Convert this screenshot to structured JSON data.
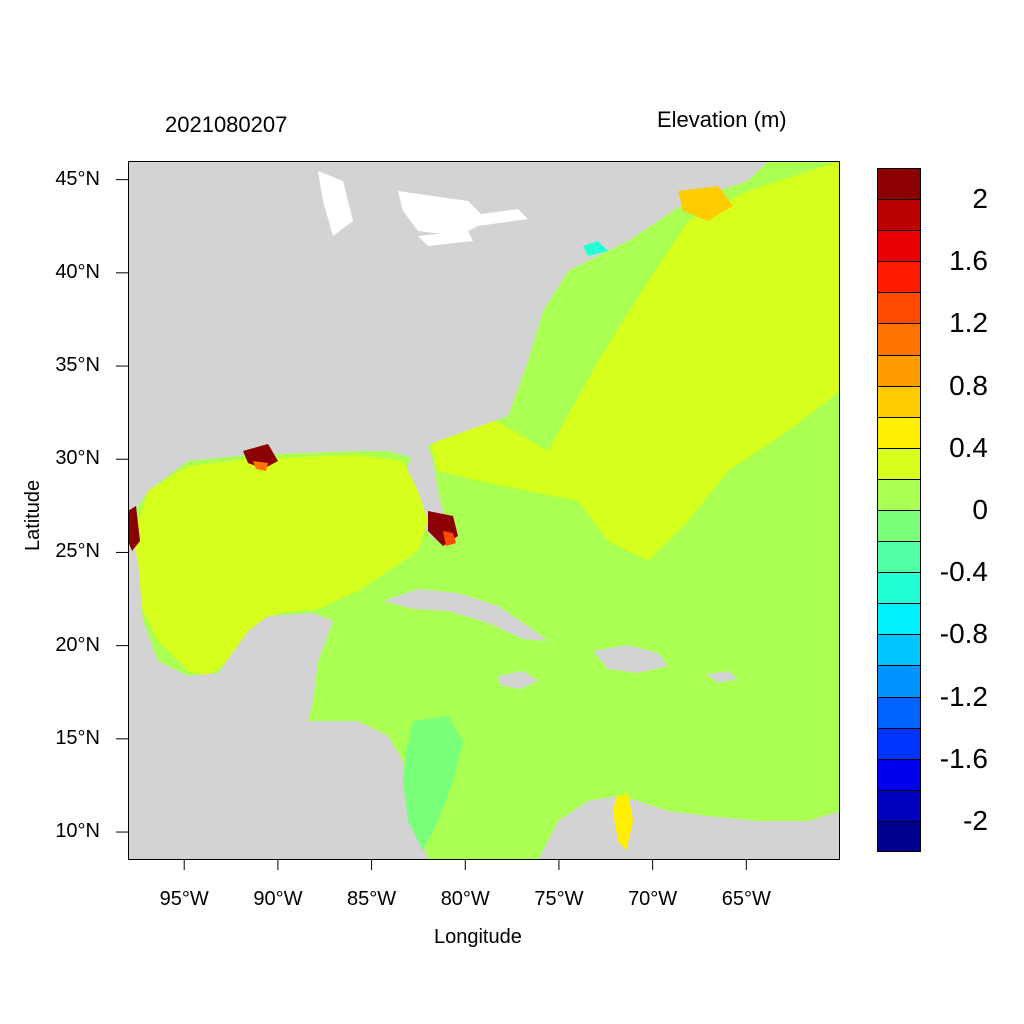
{
  "header": {
    "timestamp": "2021080207",
    "variable": "Elevation (m)"
  },
  "axes": {
    "xlabel": "Longitude",
    "ylabel": "Latitude",
    "lon_range": [
      -98,
      -60
    ],
    "lat_range": [
      8.5,
      46
    ],
    "x_ticks": [
      {
        "value": -95,
        "label": "95°W"
      },
      {
        "value": -90,
        "label": "90°W"
      },
      {
        "value": -85,
        "label": "85°W"
      },
      {
        "value": -80,
        "label": "80°W"
      },
      {
        "value": -75,
        "label": "75°W"
      },
      {
        "value": -70,
        "label": "70°W"
      },
      {
        "value": -65,
        "label": "65°W"
      }
    ],
    "y_ticks": [
      {
        "value": 45,
        "label": "45°N"
      },
      {
        "value": 40,
        "label": "40°N"
      },
      {
        "value": 35,
        "label": "35°N"
      },
      {
        "value": 30,
        "label": "30°N"
      },
      {
        "value": 25,
        "label": "25°N"
      },
      {
        "value": 20,
        "label": "20°N"
      },
      {
        "value": 15,
        "label": "15°N"
      },
      {
        "value": 10,
        "label": "10°N"
      }
    ]
  },
  "colorbar": {
    "colors_top_to_bottom": [
      "#8b0000",
      "#bb0000",
      "#e80000",
      "#ff1a00",
      "#ff4a00",
      "#ff7400",
      "#ff9c00",
      "#ffcc00",
      "#ffef00",
      "#d6ff1e",
      "#a9ff52",
      "#7aff7a",
      "#52ffa4",
      "#22ffd4",
      "#00f0ff",
      "#00c4ff",
      "#0094ff",
      "#0062ff",
      "#0034ff",
      "#0000ee",
      "#0000bd",
      "#00008f"
    ],
    "labels": [
      "2",
      "1.6",
      "1.2",
      "0.8",
      "0.4",
      "0",
      "-0.4",
      "-0.8",
      "-1.2",
      "-1.6",
      "-2"
    ]
  },
  "map_colors": {
    "land": "#d3d3d3",
    "gulf": "#d6ff1e",
    "atlantic": "#d6ff1e",
    "caribbean": "#a9ff52",
    "near_zero": "#7aff7a",
    "high": "#8b0000",
    "mid": "#ffcc00"
  }
}
